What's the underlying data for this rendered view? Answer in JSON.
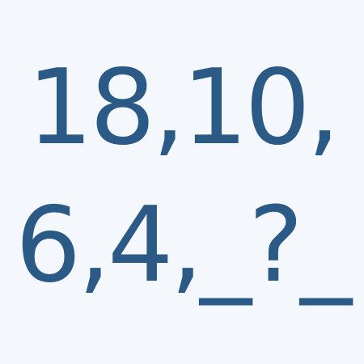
{
  "puzzle": {
    "line1": "18,10,",
    "line2": "6,4,_?_"
  },
  "colors": {
    "background": "#f4f8fd",
    "text": "#2b5a86"
  }
}
